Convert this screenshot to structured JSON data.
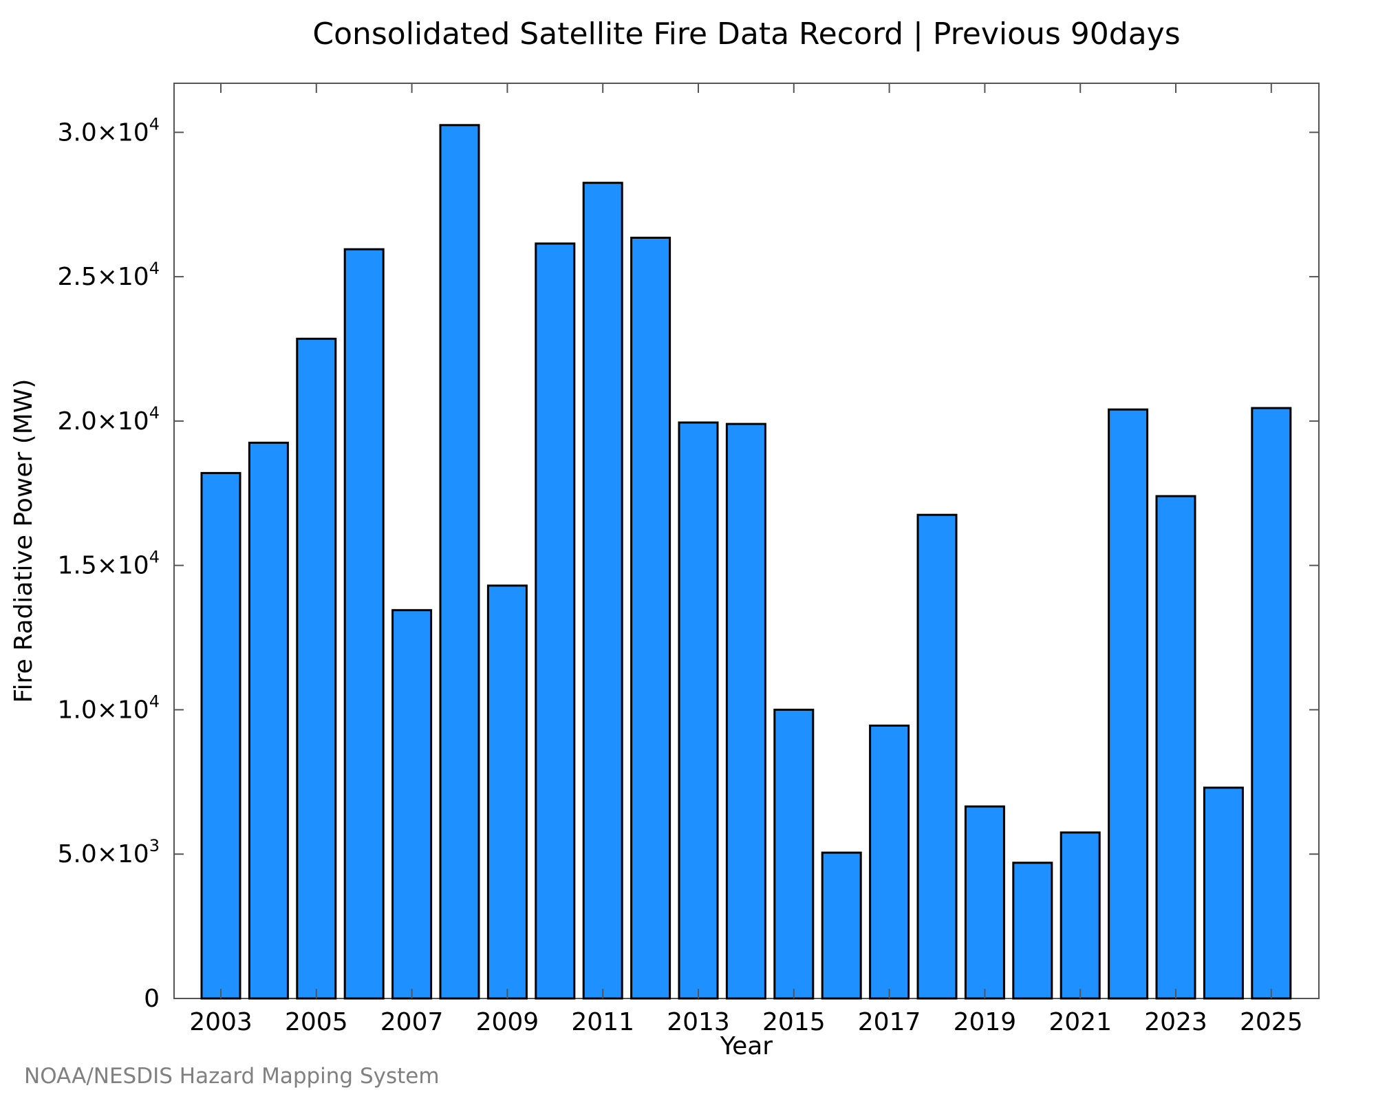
{
  "chart_data": {
    "type": "bar",
    "title": "Consolidated Satellite Fire Data Record | Previous 90days",
    "xlabel": "Year",
    "ylabel": "Fire Radiative Power (MW)",
    "ylim": [
      0,
      31700
    ],
    "bar_color": "#1e90ff",
    "bar_edge_color": "#000000",
    "grid": false,
    "categories": [
      "2003",
      "2004",
      "2005",
      "2006",
      "2007",
      "2008",
      "2009",
      "2010",
      "2011",
      "2012",
      "2013",
      "2014",
      "2015",
      "2016",
      "2017",
      "2018",
      "2019",
      "2020",
      "2021",
      "2022",
      "2023",
      "2024",
      "2025"
    ],
    "values": [
      18200,
      19250,
      22850,
      25950,
      13450,
      30250,
      14300,
      26150,
      28250,
      26350,
      19950,
      19900,
      10000,
      5050,
      9450,
      16750,
      6650,
      4700,
      5750,
      20400,
      17400,
      7300,
      20450
    ],
    "x_tick_labels": [
      "2003",
      "2005",
      "2007",
      "2009",
      "2011",
      "2013",
      "2015",
      "2017",
      "2019",
      "2021",
      "2023",
      "2025"
    ],
    "y_ticks": [
      {
        "value": 0,
        "mantissa": "0",
        "exponent": ""
      },
      {
        "value": 5000,
        "mantissa": "5.0×10",
        "exponent": "3"
      },
      {
        "value": 10000,
        "mantissa": "1.0×10",
        "exponent": "4"
      },
      {
        "value": 15000,
        "mantissa": "1.5×10",
        "exponent": "4"
      },
      {
        "value": 20000,
        "mantissa": "2.0×10",
        "exponent": "4"
      },
      {
        "value": 25000,
        "mantissa": "2.5×10",
        "exponent": "4"
      },
      {
        "value": 30000,
        "mantissa": "3.0×10",
        "exponent": "4"
      }
    ],
    "credit": "NOAA/NESDIS Hazard Mapping System"
  }
}
